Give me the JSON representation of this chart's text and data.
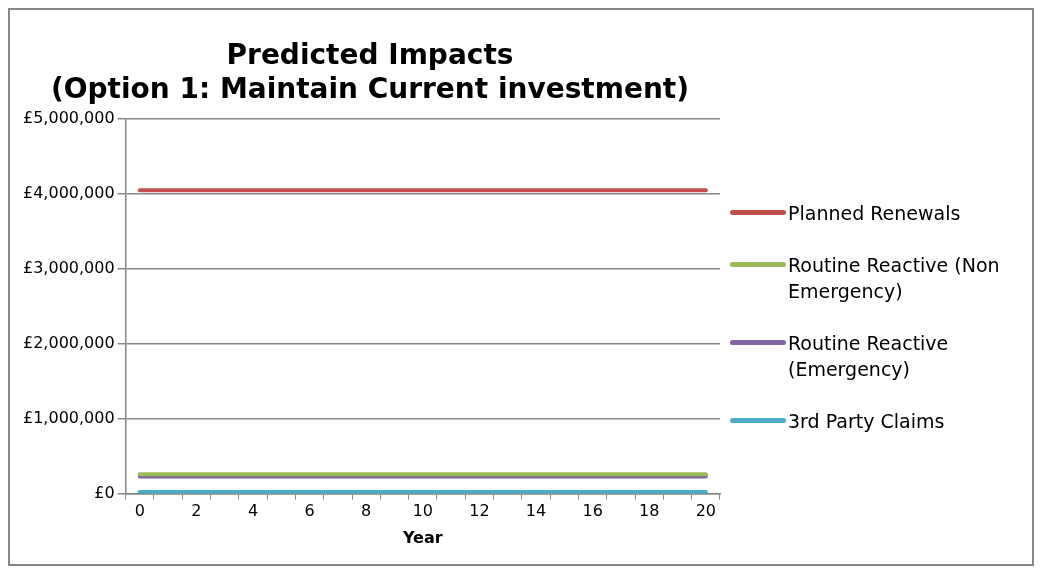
{
  "chart_data": {
    "type": "line",
    "title": "Predicted Impacts\n(Option 1: Maintain Current investment)",
    "xlabel": "Year",
    "categories": [
      "0",
      null,
      "2",
      null,
      "4",
      null,
      "6",
      null,
      "8",
      null,
      "10",
      null,
      "12",
      null,
      "14",
      null,
      "16",
      null,
      "18",
      null,
      "20"
    ],
    "series": [
      {
        "name": "Planned Renewals",
        "color": "#c0504d",
        "values": [
          4050000,
          4050000,
          4050000,
          4050000,
          4050000,
          4050000,
          4050000,
          4050000,
          4050000,
          4050000,
          4050000,
          4050000,
          4050000,
          4050000,
          4050000,
          4050000,
          4050000,
          4050000,
          4050000,
          4050000,
          4050000
        ]
      },
      {
        "name": "Routine Reactive (Non Emergency)",
        "color": "#9bbb59",
        "values": [
          260000,
          260000,
          260000,
          260000,
          260000,
          260000,
          260000,
          260000,
          260000,
          260000,
          260000,
          260000,
          260000,
          260000,
          260000,
          260000,
          260000,
          260000,
          260000,
          260000,
          260000
        ]
      },
      {
        "name": "Routine Reactive (Emergency)",
        "color": "#8064a2",
        "values": [
          230000,
          230000,
          230000,
          230000,
          230000,
          230000,
          230000,
          230000,
          230000,
          230000,
          230000,
          230000,
          230000,
          230000,
          230000,
          230000,
          230000,
          230000,
          230000,
          230000,
          230000
        ]
      },
      {
        "name": "3rd Party Claims",
        "color": "#4bacc6",
        "values": [
          20000,
          20000,
          20000,
          20000,
          20000,
          20000,
          20000,
          20000,
          20000,
          20000,
          20000,
          20000,
          20000,
          20000,
          20000,
          20000,
          20000,
          20000,
          20000,
          20000,
          20000
        ]
      }
    ],
    "ylim": [
      0,
      5000000
    ],
    "yticks": [
      {
        "value": 0,
        "label": "£0"
      },
      {
        "value": 1000000,
        "label": "£1,000,000"
      },
      {
        "value": 2000000,
        "label": "£2,000,000"
      },
      {
        "value": 3000000,
        "label": "£3,000,000"
      },
      {
        "value": 4000000,
        "label": "£4,000,000"
      },
      {
        "value": 5000000,
        "label": "£5,000,000"
      }
    ],
    "grid": "y",
    "legend": "right",
    "marker": "none",
    "line_style": "solid"
  }
}
